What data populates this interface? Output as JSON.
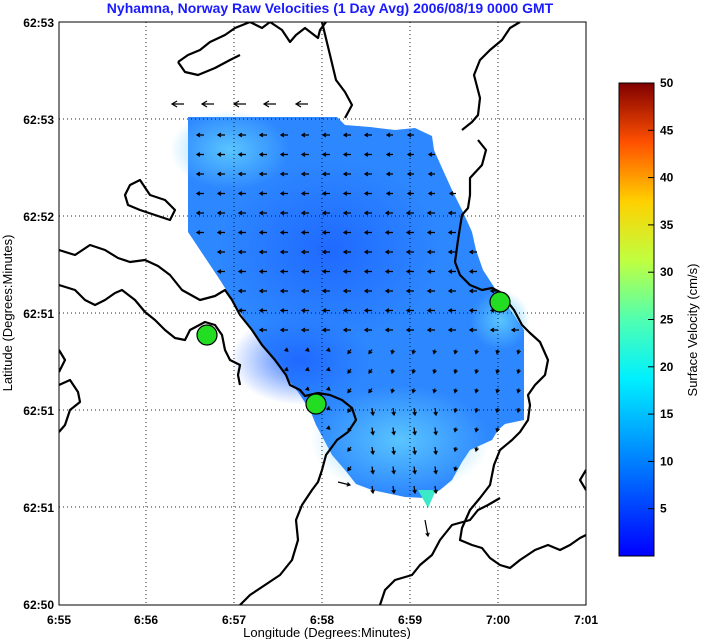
{
  "chart_data": {
    "type": "heatmap",
    "title": "Nyhamna, Norway Raw Velocities (1 Day Avg) 2006/08/19 0000 GMT",
    "xlabel": "Longitude (Degrees:Minutes)",
    "ylabel": "Latitude (Degrees:Minutes)",
    "x_ticks": [
      "6:55",
      "6:56",
      "6:57",
      "6:58",
      "6:59",
      "7:00",
      "7:01"
    ],
    "y_ticks": [
      "62:53",
      "62:53",
      "62:52",
      "62:51",
      "62:51",
      "62:51",
      "62:50"
    ],
    "grid": true,
    "colorbar": {
      "label": "Surface Velocity (cm/s)",
      "min": 0,
      "max": 50,
      "ticks": [
        "5",
        "10",
        "15",
        "20",
        "25",
        "30",
        "35",
        "40",
        "45",
        "50"
      ],
      "colormap": "jet"
    },
    "stations": [
      {
        "lon": 6.95,
        "lat": 62.8583
      },
      {
        "lon": 6.9833,
        "lat": 62.85
      },
      {
        "lon": 7.0,
        "lat": 62.8617
      }
    ],
    "vectors": [
      {
        "lon": 6.9333,
        "lat": 62.8833,
        "u": -1,
        "v": 0
      },
      {
        "lon": 6.95,
        "lat": 62.8833,
        "u": -1,
        "v": 0
      },
      {
        "lon": 6.9667,
        "lat": 62.8833,
        "u": -1,
        "v": 0
      },
      {
        "lon": 6.9167,
        "lat": 62.8833,
        "u": -1,
        "v": 0
      },
      {
        "lon": 6.9833,
        "lat": 62.8833,
        "u": -1,
        "v": 0
      }
    ]
  }
}
